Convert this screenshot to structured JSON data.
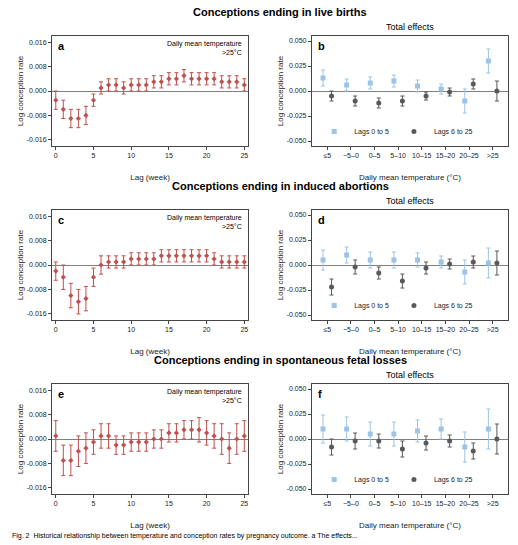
{
  "titles": [
    "Conceptions ending in live births",
    "Conceptions ending in induced abortions",
    "Conceptions ending in spontaneous fetal losses"
  ],
  "caption": "Fig. 2  Historical relationship between temperature and conception rates by pregnancy outcome. a The effects...",
  "chart_data": [
    {
      "type": "scatter",
      "panel_label": "a",
      "annotation": "Daily mean temperature\n>25°C",
      "xlabel": "Lag (week)",
      "ylabel": "Log conception rate",
      "grid": false,
      "x": [
        0,
        1,
        2,
        3,
        4,
        5,
        6,
        7,
        8,
        9,
        10,
        11,
        12,
        13,
        14,
        15,
        16,
        17,
        18,
        19,
        20,
        21,
        22,
        23,
        24,
        25
      ],
      "xlim": [
        -0.5,
        25.5
      ],
      "xticks": [
        0,
        5,
        10,
        15,
        20,
        25
      ],
      "ylim": [
        -0.018,
        0.018
      ],
      "yticks": [
        -0.016,
        -0.008,
        {
          "value": 0,
          "label": "0.000"
        },
        0.008,
        0.016
      ],
      "series": [
        {
          "color": "#C0504D",
          "marker": "diamond",
          "values": [
            -0.003,
            -0.006,
            -0.009,
            -0.009,
            -0.008,
            -0.003,
            0.001,
            0.002,
            0.002,
            0.001,
            0.002,
            0.002,
            0.002,
            0.003,
            0.003,
            0.004,
            0.004,
            0.005,
            0.004,
            0.004,
            0.004,
            0.004,
            0.003,
            0.003,
            0.003,
            0.002
          ],
          "errors": [
            0.003,
            0.003,
            0.003,
            0.003,
            0.003,
            0.002,
            0.002,
            0.002,
            0.002,
            0.002,
            0.002,
            0.002,
            0.002,
            0.002,
            0.002,
            0.002,
            0.002,
            0.002,
            0.002,
            0.002,
            0.002,
            0.002,
            0.002,
            0.002,
            0.002,
            0.002
          ]
        }
      ]
    },
    {
      "type": "scatter",
      "panel_label": "b",
      "title": "Total effects",
      "xlabel": "Daily mean temperature (°C)",
      "ylabel": "Log conception rate",
      "grid": false,
      "legend": "lower left",
      "categories": [
        "≤5",
        "−5–0",
        "0–5",
        "5–10",
        "10–15",
        "15–20",
        "20–25",
        ">25"
      ],
      "ylim": [
        -0.055,
        0.055
      ],
      "yticks": [
        {
          "value": -0.05,
          "label": "-0.050"
        },
        -0.025,
        {
          "value": 0,
          "label": "0.000"
        },
        0.025,
        {
          "value": 0.05,
          "label": "0.050"
        }
      ],
      "series": [
        {
          "name": "Lags 0 to 5",
          "color": "#9DC3E6",
          "marker": "square",
          "values": [
            0.013,
            0.006,
            0.008,
            0.01,
            0.005,
            0.002,
            -0.01,
            0.03
          ],
          "errors": [
            0.008,
            0.006,
            0.006,
            0.006,
            0.006,
            0.005,
            0.012,
            0.012
          ]
        },
        {
          "name": "Lags 6 to 25",
          "color": "#595959",
          "marker": "circle",
          "values": [
            -0.005,
            -0.01,
            -0.012,
            -0.01,
            -0.005,
            -0.001,
            0.007,
            0.0
          ],
          "errors": [
            0.005,
            0.005,
            0.005,
            0.005,
            0.004,
            0.004,
            0.005,
            0.01
          ]
        }
      ]
    },
    {
      "type": "scatter",
      "panel_label": "c",
      "annotation": "Daily mean temperature\n>25°C",
      "xlabel": "Lag (week)",
      "ylabel": "Log conception rate",
      "grid": false,
      "x": [
        0,
        1,
        2,
        3,
        4,
        5,
        6,
        7,
        8,
        9,
        10,
        11,
        12,
        13,
        14,
        15,
        16,
        17,
        18,
        19,
        20,
        21,
        22,
        23,
        24,
        25
      ],
      "xlim": [
        -0.5,
        25.5
      ],
      "xticks": [
        0,
        5,
        10,
        15,
        20,
        25
      ],
      "ylim": [
        -0.018,
        0.018
      ],
      "yticks": [
        -0.016,
        -0.008,
        {
          "value": 0,
          "label": "0.000"
        },
        0.008,
        0.016
      ],
      "series": [
        {
          "color": "#C0504D",
          "marker": "diamond",
          "values": [
            -0.002,
            -0.004,
            -0.01,
            -0.012,
            -0.011,
            -0.004,
            0.0,
            0.001,
            0.001,
            0.001,
            0.002,
            0.002,
            0.002,
            0.002,
            0.003,
            0.003,
            0.003,
            0.003,
            0.003,
            0.003,
            0.003,
            0.002,
            0.001,
            0.001,
            0.001,
            0.001
          ],
          "errors": [
            0.003,
            0.004,
            0.004,
            0.004,
            0.004,
            0.003,
            0.003,
            0.002,
            0.002,
            0.002,
            0.002,
            0.002,
            0.002,
            0.002,
            0.002,
            0.002,
            0.002,
            0.002,
            0.002,
            0.002,
            0.002,
            0.002,
            0.002,
            0.002,
            0.002,
            0.002
          ]
        }
      ]
    },
    {
      "type": "scatter",
      "panel_label": "d",
      "title": "Total effects",
      "xlabel": "Daily mean temperature (°C)",
      "ylabel": "Log conception rate",
      "grid": false,
      "legend": "lower left",
      "categories": [
        "≤5",
        "−5–0",
        "0–5",
        "5–10",
        "10–15",
        "15–20",
        "20–25",
        ">25"
      ],
      "ylim": [
        -0.055,
        0.055
      ],
      "yticks": [
        {
          "value": -0.05,
          "label": "-0.050"
        },
        -0.025,
        {
          "value": 0,
          "label": "0.000"
        },
        0.025,
        {
          "value": 0.05,
          "label": "0.050"
        }
      ],
      "series": [
        {
          "name": "Lags 0 to 5",
          "color": "#9DC3E6",
          "marker": "square",
          "values": [
            0.005,
            0.01,
            0.005,
            0.005,
            0.005,
            0.003,
            -0.007,
            0.002
          ],
          "errors": [
            0.01,
            0.008,
            0.008,
            0.008,
            0.007,
            0.006,
            0.012,
            0.015
          ]
        },
        {
          "name": "Lags 6 to 25",
          "color": "#595959",
          "marker": "circle",
          "values": [
            -0.022,
            -0.002,
            -0.008,
            -0.016,
            -0.003,
            0.001,
            0.003,
            0.002
          ],
          "errors": [
            0.008,
            0.007,
            0.006,
            0.007,
            0.006,
            0.005,
            0.006,
            0.012
          ]
        }
      ]
    },
    {
      "type": "scatter",
      "panel_label": "e",
      "annotation": "Daily mean temperature\n>25°C",
      "xlabel": "Lag (week)",
      "ylabel": "Log conception rate",
      "grid": false,
      "x": [
        0,
        1,
        2,
        3,
        4,
        5,
        6,
        7,
        8,
        9,
        10,
        11,
        12,
        13,
        14,
        15,
        16,
        17,
        18,
        19,
        20,
        21,
        22,
        23,
        24,
        25
      ],
      "xlim": [
        -0.5,
        25.5
      ],
      "xticks": [
        0,
        5,
        10,
        15,
        20,
        25
      ],
      "ylim": [
        -0.018,
        0.018
      ],
      "yticks": [
        -0.016,
        -0.008,
        {
          "value": 0,
          "label": "0.000"
        },
        0.008,
        0.016
      ],
      "series": [
        {
          "color": "#C0504D",
          "marker": "diamond",
          "values": [
            0.001,
            -0.007,
            -0.007,
            -0.004,
            -0.003,
            -0.001,
            0.001,
            0.001,
            -0.002,
            -0.002,
            -0.001,
            -0.001,
            -0.001,
            0.0,
            0.0,
            0.002,
            0.002,
            0.003,
            0.003,
            0.003,
            0.002,
            0.001,
            0.0,
            -0.003,
            0.0,
            0.001
          ],
          "errors": [
            0.005,
            0.005,
            0.005,
            0.005,
            0.005,
            0.004,
            0.004,
            0.004,
            0.003,
            0.003,
            0.003,
            0.003,
            0.003,
            0.003,
            0.003,
            0.003,
            0.003,
            0.003,
            0.003,
            0.004,
            0.004,
            0.004,
            0.005,
            0.005,
            0.005,
            0.005
          ]
        }
      ]
    },
    {
      "type": "scatter",
      "panel_label": "f",
      "title": "Total effects",
      "xlabel": "Daily mean temperature (°C)",
      "ylabel": "Log conception rate",
      "grid": false,
      "legend": "lower left",
      "categories": [
        "≤5",
        "−5–0",
        "0–5",
        "5–10",
        "10–15",
        "15–20",
        "20–25",
        ">25"
      ],
      "ylim": [
        -0.055,
        0.055
      ],
      "yticks": [
        {
          "value": -0.05,
          "label": "-0.050"
        },
        -0.025,
        {
          "value": 0,
          "label": "0.000"
        },
        0.025,
        {
          "value": 0.05,
          "label": "0.050"
        }
      ],
      "series": [
        {
          "name": "Lags 0 to 5",
          "color": "#9DC3E6",
          "marker": "square",
          "values": [
            0.01,
            0.01,
            0.005,
            0.005,
            0.008,
            0.01,
            -0.008,
            0.01
          ],
          "errors": [
            0.014,
            0.012,
            0.012,
            0.012,
            0.011,
            0.01,
            0.015,
            0.02
          ]
        },
        {
          "name": "Lags 6 to 25",
          "color": "#595959",
          "marker": "circle",
          "values": [
            -0.008,
            -0.002,
            -0.002,
            -0.01,
            -0.004,
            -0.002,
            -0.012,
            0.0
          ],
          "errors": [
            0.008,
            0.008,
            0.007,
            0.008,
            0.007,
            0.006,
            0.008,
            0.015
          ]
        }
      ]
    }
  ]
}
